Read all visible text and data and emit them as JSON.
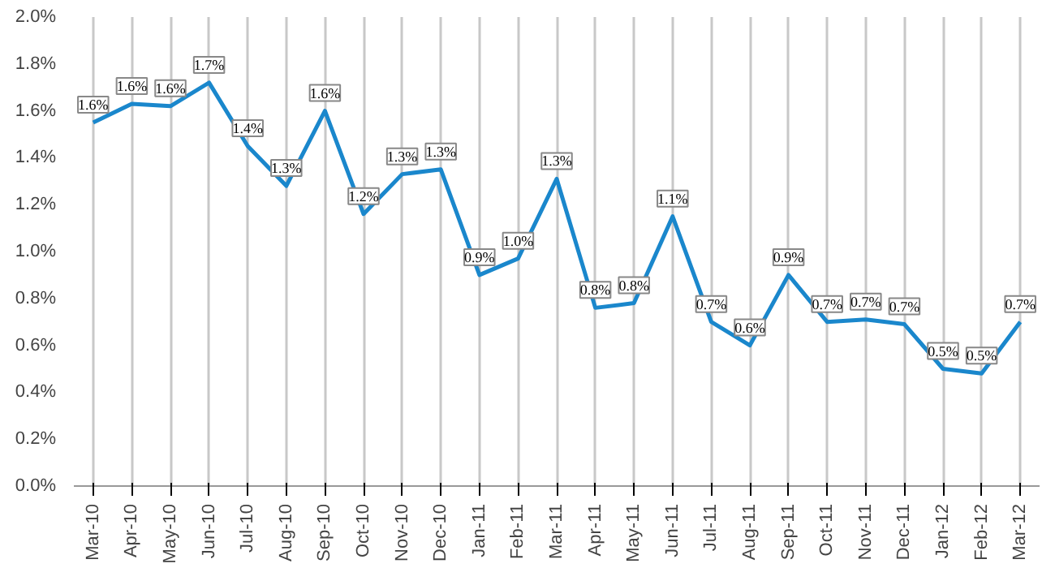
{
  "chart_data": {
    "type": "line",
    "categories": [
      "Mar-10",
      "Apr-10",
      "May-10",
      "Jun-10",
      "Jul-10",
      "Aug-10",
      "Sep-10",
      "Oct-10",
      "Nov-10",
      "Dec-10",
      "Jan-11",
      "Feb-11",
      "Mar-11",
      "Apr-11",
      "May-11",
      "Jun-11",
      "Jul-11",
      "Aug-11",
      "Sep-11",
      "Oct-11",
      "Nov-11",
      "Dec-11",
      "Jan-12",
      "Feb-12",
      "Mar-12"
    ],
    "series": [
      {
        "color": "#1a87cc",
        "values": [
          1.55,
          1.63,
          1.62,
          1.72,
          1.45,
          1.28,
          1.6,
          1.16,
          1.33,
          1.35,
          0.9,
          0.97,
          1.31,
          0.76,
          0.78,
          1.15,
          0.7,
          0.6,
          0.9,
          0.7,
          0.71,
          0.69,
          0.5,
          0.48,
          0.7
        ],
        "value_labels": [
          "1.6%",
          "1.6%",
          "1.6%",
          "1.7%",
          "1.4%",
          "1.3%",
          "1.6%",
          "1.2%",
          "1.3%",
          "1.3%",
          "0.9%",
          "1.0%",
          "1.3%",
          "0.8%",
          "0.8%",
          "1.1%",
          "0.7%",
          "0.6%",
          "0.9%",
          "0.7%",
          "0.7%",
          "0.7%",
          "0.5%",
          "0.5%",
          "0.7%"
        ]
      }
    ],
    "ylim": [
      0,
      2.0
    ],
    "yticks": [
      {
        "value": 0,
        "label": "0.0%"
      },
      {
        "value": 0.2,
        "label": "0.2%"
      },
      {
        "value": 0.4,
        "label": "0.4%"
      },
      {
        "value": 0.6,
        "label": "0.6%"
      },
      {
        "value": 0.8,
        "label": "0.8%"
      },
      {
        "value": 1.0,
        "label": "1.0%"
      },
      {
        "value": 1.2,
        "label": "1.2%"
      },
      {
        "value": 1.4,
        "label": "1.4%"
      },
      {
        "value": 1.6,
        "label": "1.6%"
      },
      {
        "value": 1.8,
        "label": "1.8%"
      },
      {
        "value": 2.0,
        "label": "2.0%"
      }
    ],
    "grid": "x",
    "marker": "none",
    "line_style": "solid"
  }
}
